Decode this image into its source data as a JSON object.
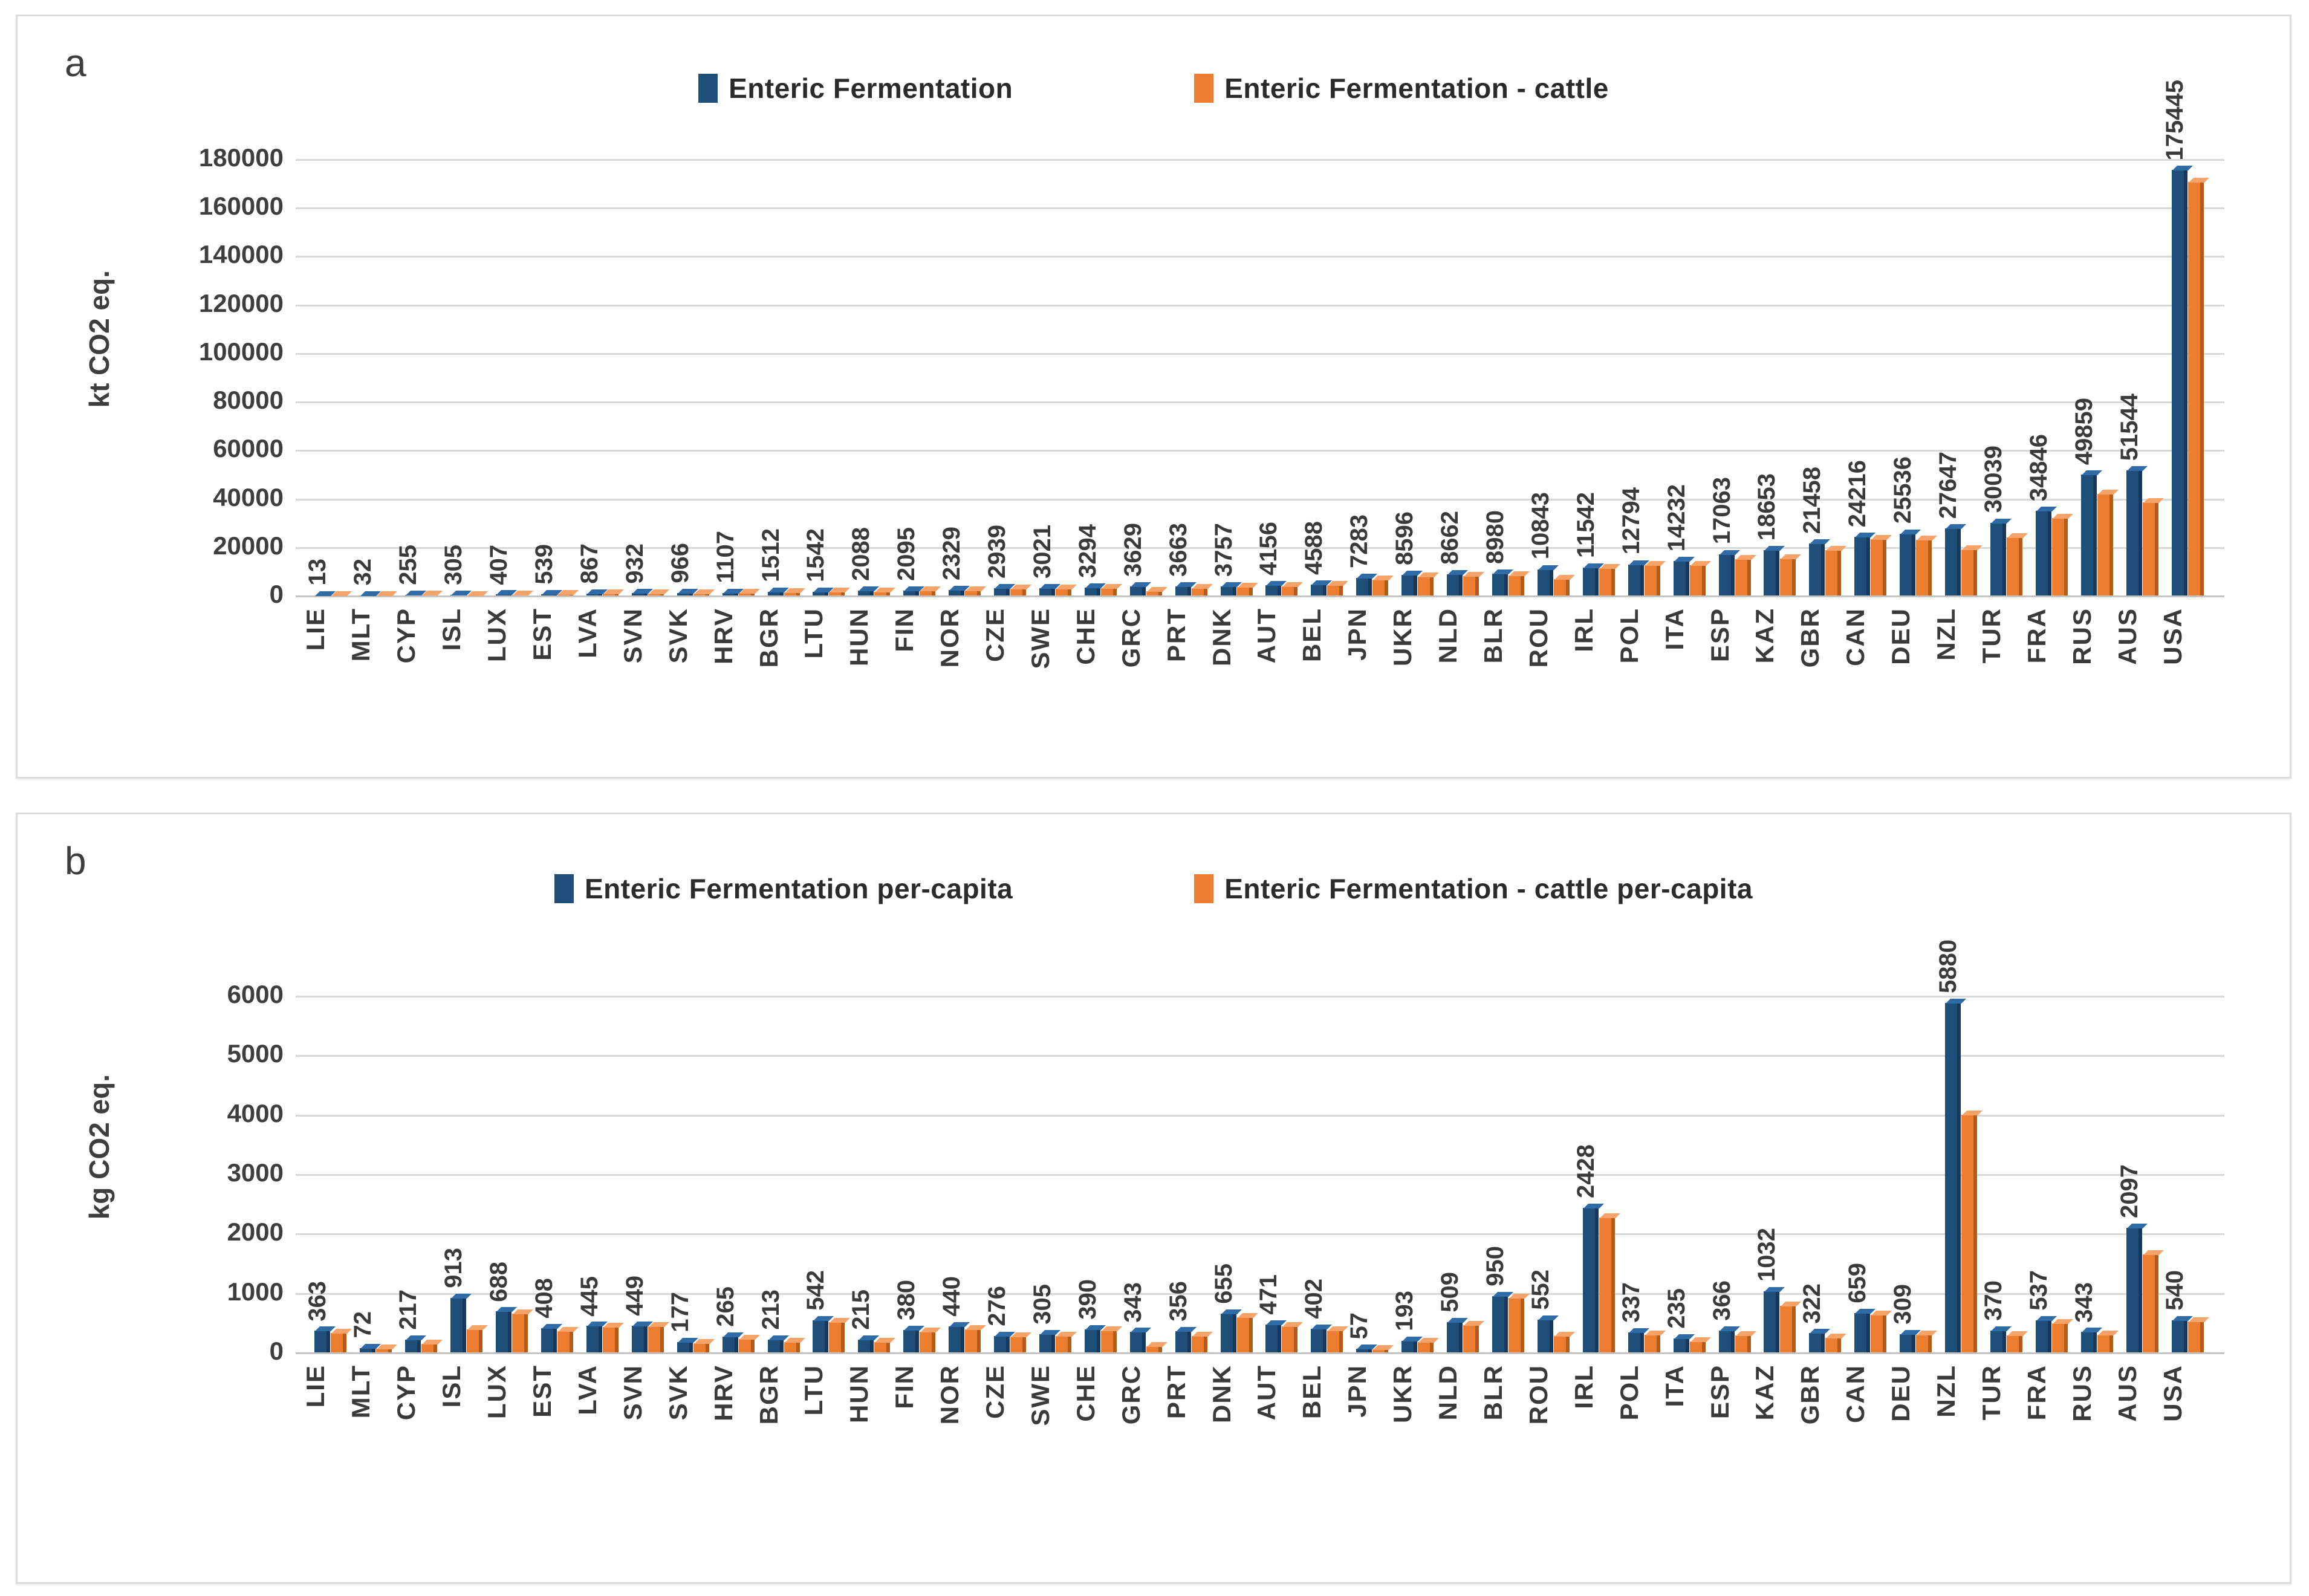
{
  "figure": {
    "panel_a_letter": "a",
    "panel_b_letter": "b",
    "colors": {
      "series_blue": "#1F4E79",
      "series_orange": "#ED7D31",
      "gridline": "#D9D9D9",
      "text": "#3E3E3E",
      "panel_border": "#DCDCDC"
    }
  },
  "chart_data": [
    {
      "panel_label": "a",
      "type": "bar",
      "title": "",
      "xlabel": "",
      "ylabel": "kt CO2 eq.",
      "ylim": [
        0,
        180000
      ],
      "ytick_step": 20000,
      "grid": true,
      "legend_position": "top-center",
      "categories": [
        "LIE",
        "MLT",
        "CYP",
        "ISL",
        "LUX",
        "EST",
        "LVA",
        "SVN",
        "SVK",
        "HRV",
        "BGR",
        "LTU",
        "HUN",
        "FIN",
        "NOR",
        "CZE",
        "SWE",
        "CHE",
        "GRC",
        "PRT",
        "DNK",
        "AUT",
        "BEL",
        "JPN",
        "UKR",
        "NLD",
        "BLR",
        "ROU",
        "IRL",
        "POL",
        "ITA",
        "ESP",
        "KAZ",
        "GBR",
        "CAN",
        "DEU",
        "NZL",
        "TUR",
        "FRA",
        "RUS",
        "AUS",
        "USA"
      ],
      "series": [
        {
          "name": "Enteric Fermentation",
          "color": "#1F4E79",
          "color_dark": "#16385C",
          "color_light": "#2F6BA6",
          "values_labeled": true,
          "values": [
            13,
            32,
            255,
            305,
            407,
            539,
            867,
            932,
            966,
            1107,
            1512,
            1542,
            2088,
            2095,
            2329,
            2939,
            3021,
            3294,
            3629,
            3663,
            3757,
            4156,
            4588,
            7283,
            8596,
            8662,
            8980,
            10843,
            11542,
            12794,
            14232,
            17063,
            18653,
            21458,
            24216,
            25536,
            27647,
            30039,
            34846,
            49859,
            51544,
            175445
          ]
        },
        {
          "name": "Enteric Fermentation - cattle",
          "color": "#ED7D31",
          "color_dark": "#B55A17",
          "color_light": "#F5A369",
          "values_labeled": false,
          "values_estimated": true,
          "values": [
            11,
            26,
            150,
            130,
            350,
            460,
            790,
            810,
            820,
            930,
            1150,
            1400,
            1550,
            1900,
            1950,
            2650,
            2650,
            3050,
            1750,
            2950,
            3400,
            3850,
            4150,
            6600,
            7700,
            7900,
            8200,
            6800,
            11250,
            12600,
            12600,
            15000,
            15200,
            18700,
            23300,
            23000,
            19000,
            23900,
            31800,
            42000,
            38500,
            170600
          ]
        }
      ]
    },
    {
      "panel_label": "b",
      "type": "bar",
      "title": "",
      "xlabel": "",
      "ylabel": "kg CO2 eq.",
      "ylim": [
        0,
        6000
      ],
      "ytick_step": 1000,
      "grid": true,
      "legend_position": "top-center",
      "categories": [
        "LIE",
        "MLT",
        "CYP",
        "ISL",
        "LUX",
        "EST",
        "LVA",
        "SVN",
        "SVK",
        "HRV",
        "BGR",
        "LTU",
        "HUN",
        "FIN",
        "NOR",
        "CZE",
        "SWE",
        "CHE",
        "GRC",
        "PRT",
        "DNK",
        "AUT",
        "BEL",
        "JPN",
        "UKR",
        "NLD",
        "BLR",
        "ROU",
        "IRL",
        "POL",
        "ITA",
        "ESP",
        "KAZ",
        "GBR",
        "CAN",
        "DEU",
        "NZL",
        "TUR",
        "FRA",
        "RUS",
        "AUS",
        "USA"
      ],
      "series": [
        {
          "name": "Enteric Fermentation per-capita",
          "color": "#1F4E79",
          "color_dark": "#16385C",
          "color_light": "#2F6BA6",
          "values_labeled": true,
          "values": [
            363,
            72,
            217,
            913,
            688,
            408,
            445,
            449,
            177,
            265,
            213,
            542,
            215,
            380,
            440,
            276,
            305,
            390,
            343,
            356,
            655,
            471,
            402,
            57,
            193,
            509,
            950,
            552,
            2428,
            337,
            235,
            366,
            1032,
            322,
            659,
            309,
            5880,
            370,
            537,
            343,
            2097,
            540
          ]
        },
        {
          "name": "Enteric Fermentation - cattle per-capita",
          "color": "#ED7D31",
          "color_dark": "#B55A17",
          "color_light": "#F5A369",
          "values_labeled": false,
          "values_estimated": true,
          "values": [
            330,
            60,
            140,
            390,
            650,
            360,
            430,
            435,
            155,
            220,
            175,
            510,
            170,
            350,
            390,
            260,
            270,
            370,
            100,
            270,
            590,
            440,
            370,
            50,
            175,
            460,
            920,
            280,
            2270,
            300,
            185,
            290,
            780,
            240,
            630,
            295,
            4000,
            290,
            490,
            300,
            1650,
            520
          ]
        }
      ]
    }
  ]
}
